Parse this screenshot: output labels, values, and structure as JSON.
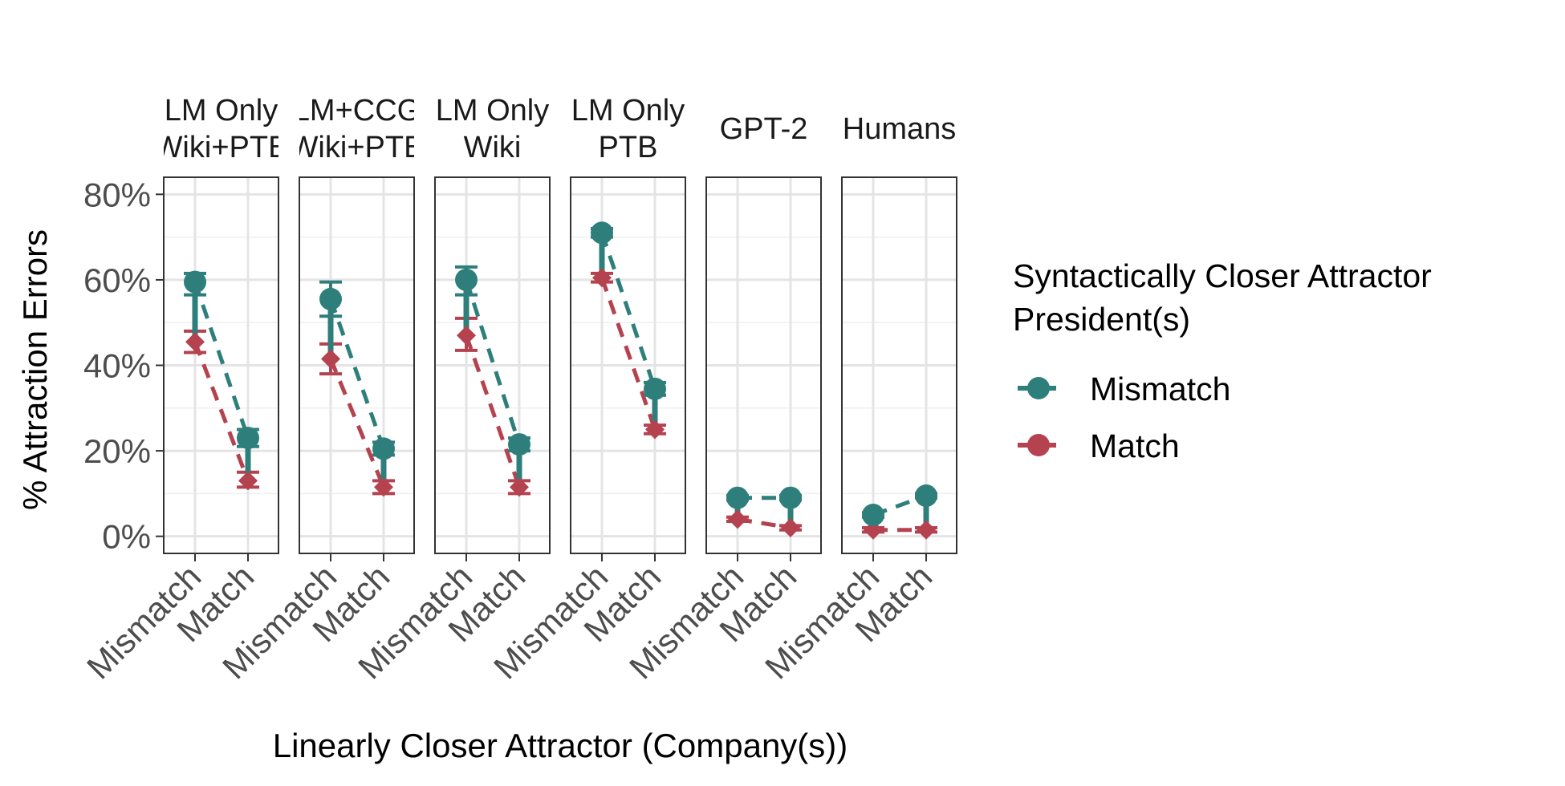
{
  "chart_data": {
    "type": "line",
    "ylabel": "% Attraction Errors",
    "xlabel": "Linearly Closer Attractor (Company(s))",
    "y_ticks": [
      "0%",
      "20%",
      "40%",
      "60%",
      "80%"
    ],
    "y_tick_values": [
      0,
      20,
      40,
      60,
      80
    ],
    "ylim": [
      -4,
      84
    ],
    "categories": [
      "Mismatch",
      "Match"
    ],
    "legend": {
      "title_line1": "Syntactically Closer Attractor",
      "title_line2": "President(s)",
      "position": "right"
    },
    "series": [
      {
        "name": "Mismatch",
        "color": "#2e7f7b",
        "shape": "circle"
      },
      {
        "name": "Match",
        "color": "#b5424f",
        "shape": "diamond"
      }
    ],
    "panels": [
      {
        "title_line1": "LM Only",
        "title_line2": "Wiki+PTB",
        "mismatch": [
          {
            "y": 59.5,
            "lo": 56.5,
            "hi": 61.5
          },
          {
            "y": 23.0,
            "lo": 21.0,
            "hi": 25.0
          }
        ],
        "match": [
          {
            "y": 45.5,
            "lo": 43.0,
            "hi": 48.0
          },
          {
            "y": 13.0,
            "lo": 11.5,
            "hi": 15.0
          }
        ]
      },
      {
        "title_line1": "LM+CCG",
        "title_line2": "Wiki+PTB",
        "mismatch": [
          {
            "y": 55.5,
            "lo": 51.5,
            "hi": 59.5
          },
          {
            "y": 20.5,
            "lo": 19.0,
            "hi": 22.0
          }
        ],
        "match": [
          {
            "y": 41.5,
            "lo": 38.0,
            "hi": 45.0
          },
          {
            "y": 11.5,
            "lo": 10.0,
            "hi": 13.0
          }
        ]
      },
      {
        "title_line1": "LM Only",
        "title_line2": "Wiki",
        "mismatch": [
          {
            "y": 60.0,
            "lo": 56.5,
            "hi": 63.0
          },
          {
            "y": 21.5,
            "lo": 20.0,
            "hi": 23.0
          }
        ],
        "match": [
          {
            "y": 47.0,
            "lo": 43.5,
            "hi": 51.0
          },
          {
            "y": 11.5,
            "lo": 10.0,
            "hi": 13.0
          }
        ]
      },
      {
        "title_line1": "LM Only",
        "title_line2": "PTB",
        "mismatch": [
          {
            "y": 71.0,
            "lo": 70.0,
            "hi": 72.0
          },
          {
            "y": 34.5,
            "lo": 33.0,
            "hi": 36.0
          }
        ],
        "match": [
          {
            "y": 60.5,
            "lo": 59.5,
            "hi": 61.5
          },
          {
            "y": 25.0,
            "lo": 24.0,
            "hi": 26.0
          }
        ]
      },
      {
        "title_line1": "",
        "title_line2": "GPT-2",
        "mismatch": [
          {
            "y": 9.0,
            "lo": 8.5,
            "hi": 9.5
          },
          {
            "y": 9.0,
            "lo": 8.5,
            "hi": 9.5
          }
        ],
        "match": [
          {
            "y": 4.0,
            "lo": 3.5,
            "hi": 4.5
          },
          {
            "y": 2.0,
            "lo": 1.5,
            "hi": 2.5
          }
        ]
      },
      {
        "title_line1": "",
        "title_line2": "Humans",
        "mismatch": [
          {
            "y": 5.0,
            "lo": 4.5,
            "hi": 5.5
          },
          {
            "y": 9.5,
            "lo": 9.0,
            "hi": 10.0
          }
        ],
        "match": [
          {
            "y": 1.5,
            "lo": 1.0,
            "hi": 2.0
          },
          {
            "y": 1.5,
            "lo": 1.0,
            "hi": 2.0
          }
        ]
      }
    ]
  }
}
